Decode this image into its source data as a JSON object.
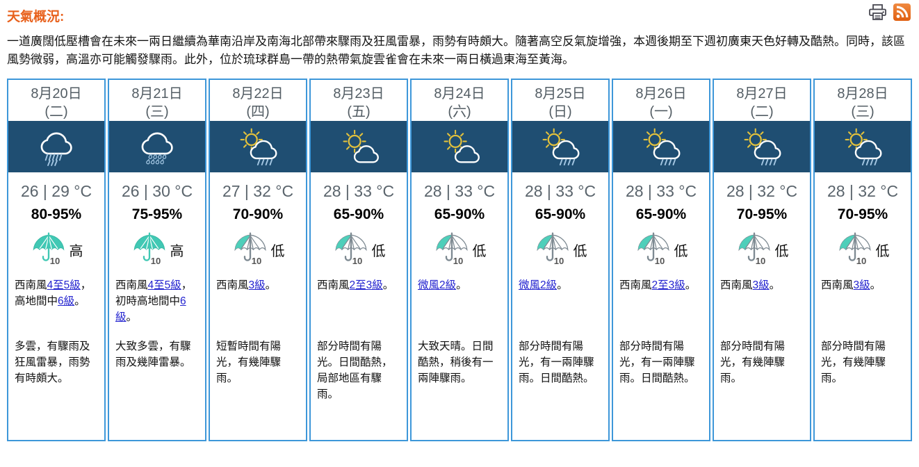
{
  "page": {
    "title": "天氣概況:",
    "summary": "一道廣闊低壓槽會在未來一兩日繼續為華南沿岸及南海北部帶來驟雨及狂風雷暴，雨勢有時頗大。隨著高空反氣旋增強，本週後期至下週初廣東天色好轉及酷熱。同時，該區風勢微弱，高溫亦可能觸發驟雨。此外，位於琉球群島一帶的熱帶氣旋雲雀會在未來一兩日橫過東海至黃海。"
  },
  "toolbar": {
    "icons": [
      "printer-icon",
      "rss-icon"
    ]
  },
  "colors": {
    "accent_orange": "#e8611c",
    "card_border": "#3d97d9",
    "icon_band_bg": "#1f4e72",
    "link_blue": "#2323cf",
    "umbrella_teal": "#41c8b4",
    "rss_orange": "#e66a1e"
  },
  "forecast": {
    "psr_icon_text": "10",
    "days": [
      {
        "date": "8月20日",
        "weekday": "(二)",
        "icon": "rain-cloud-icon",
        "temp": "26 | 29 °C",
        "humidity": "80-95%",
        "psr": "high",
        "psr_level": "高",
        "wind_segments": [
          {
            "t": "西南風",
            "link": false
          },
          {
            "t": "4至5級",
            "link": true
          },
          {
            "t": "，高地間中",
            "link": false
          },
          {
            "t": "6級",
            "link": true
          },
          {
            "t": "。",
            "link": false
          }
        ],
        "description": "多雲，有驟雨及狂風雷暴，雨勢有時頗大。"
      },
      {
        "date": "8月21日",
        "weekday": "(三)",
        "icon": "rain-drops-icon",
        "temp": "26 | 30 °C",
        "humidity": "75-95%",
        "psr": "high",
        "psr_level": "高",
        "wind_segments": [
          {
            "t": "西南風",
            "link": false
          },
          {
            "t": "4至5級",
            "link": true
          },
          {
            "t": "，初時高地間中",
            "link": false
          },
          {
            "t": "6級",
            "link": true
          },
          {
            "t": "。",
            "link": false
          }
        ],
        "description": "大致多雲，有驟雨及幾陣雷暴。"
      },
      {
        "date": "8月22日",
        "weekday": "(四)",
        "icon": "sun-shower-icon",
        "temp": "27 | 32 °C",
        "humidity": "70-90%",
        "psr": "low",
        "psr_level": "低",
        "wind_segments": [
          {
            "t": "西南風",
            "link": false
          },
          {
            "t": "3級",
            "link": true
          },
          {
            "t": "。",
            "link": false
          }
        ],
        "description": "短暫時間有陽光，有幾陣驟雨。"
      },
      {
        "date": "8月23日",
        "weekday": "(五)",
        "icon": "sun-cloud-icon",
        "temp": "28 | 33 °C",
        "humidity": "65-90%",
        "psr": "low",
        "psr_level": "低",
        "wind_segments": [
          {
            "t": "西南風",
            "link": false
          },
          {
            "t": "2至3級",
            "link": true
          },
          {
            "t": "。",
            "link": false
          }
        ],
        "description": "部分時間有陽光。日間酷熱，局部地區有驟雨。"
      },
      {
        "date": "8月24日",
        "weekday": "(六)",
        "icon": "sun-cloud-icon",
        "temp": "28 | 33 °C",
        "humidity": "65-90%",
        "psr": "low",
        "psr_level": "低",
        "wind_segments": [
          {
            "t": "微風2級",
            "link": true
          },
          {
            "t": "。",
            "link": false
          }
        ],
        "description": "大致天晴。日間酷熱，稍後有一兩陣驟雨。"
      },
      {
        "date": "8月25日",
        "weekday": "(日)",
        "icon": "sun-shower-icon",
        "temp": "28 | 33 °C",
        "humidity": "65-90%",
        "psr": "low",
        "psr_level": "低",
        "wind_segments": [
          {
            "t": "微風2級",
            "link": true
          },
          {
            "t": "。",
            "link": false
          }
        ],
        "description": "部分時間有陽光，有一兩陣驟雨。日間酷熱。"
      },
      {
        "date": "8月26日",
        "weekday": "(一)",
        "icon": "sun-shower-icon",
        "temp": "28 | 33 °C",
        "humidity": "65-90%",
        "psr": "low",
        "psr_level": "低",
        "wind_segments": [
          {
            "t": "西南風",
            "link": false
          },
          {
            "t": "2至3級",
            "link": true
          },
          {
            "t": "。",
            "link": false
          }
        ],
        "description": "部分時間有陽光，有一兩陣驟雨。日間酷熱。"
      },
      {
        "date": "8月27日",
        "weekday": "(二)",
        "icon": "sun-shower-icon",
        "temp": "28 | 32 °C",
        "humidity": "70-95%",
        "psr": "low",
        "psr_level": "低",
        "wind_segments": [
          {
            "t": "西南風",
            "link": false
          },
          {
            "t": "3級",
            "link": true
          },
          {
            "t": "。",
            "link": false
          }
        ],
        "description": "部分時間有陽光，有幾陣驟雨。"
      },
      {
        "date": "8月28日",
        "weekday": "(三)",
        "icon": "sun-shower-icon",
        "temp": "28 | 32 °C",
        "humidity": "70-95%",
        "psr": "low",
        "psr_level": "低",
        "wind_segments": [
          {
            "t": "西南風",
            "link": false
          },
          {
            "t": "3級",
            "link": true
          },
          {
            "t": "。",
            "link": false
          }
        ],
        "description": "部分時間有陽光，有幾陣驟雨。"
      }
    ]
  }
}
